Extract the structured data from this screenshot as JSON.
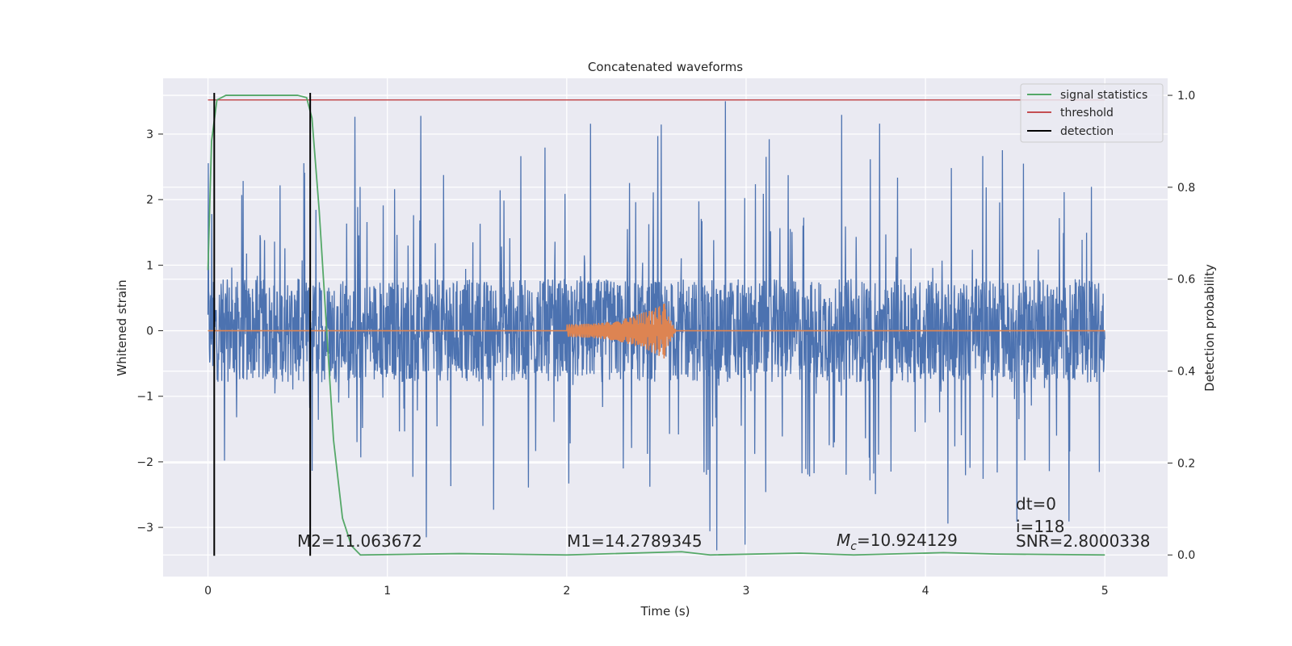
{
  "chart_data": {
    "type": "line",
    "title": "Concatenated waveforms",
    "xlabel": "Time (s)",
    "ylabel": "Whitened strain",
    "y2label": "Detection probability",
    "xlim": [
      -0.25,
      5.35
    ],
    "ylim": [
      -3.75,
      3.85
    ],
    "y2lim": [
      -0.047,
      1.037
    ],
    "x_ticks": [
      0,
      1,
      2,
      3,
      4,
      5
    ],
    "x_tick_labels": [
      "0",
      "1",
      "2",
      "3",
      "4",
      "5"
    ],
    "y_ticks": [
      -3,
      -2,
      -1,
      0,
      1,
      2,
      3
    ],
    "y_tick_labels": [
      "−3",
      "−2",
      "−1",
      "0",
      "1",
      "2",
      "3"
    ],
    "y2_ticks": [
      0.0,
      0.2,
      0.4,
      0.6,
      0.8,
      1.0
    ],
    "y2_tick_labels": [
      "0.0",
      "0.2",
      "0.4",
      "0.6",
      "0.8",
      "1.0"
    ],
    "grid": true,
    "legend_position": "top-right",
    "series": [
      {
        "name": "whitened strain",
        "axis": "left",
        "color": "#4c72b0",
        "description": "noise-dominated strain, amplitude roughly between -3.3 and 3.5 over 0 to 5 s",
        "x_range": [
          0,
          5
        ],
        "band": [
          -0.75,
          0.75
        ],
        "spike_max": 3.5,
        "spike_min": -3.35
      },
      {
        "name": "injected waveform",
        "axis": "left",
        "color": "#dd8452",
        "chirp_start": 2.0,
        "chirp_end": 2.56,
        "chirp_peak_amplitude": 0.45,
        "x_range": [
          0,
          5
        ]
      },
      {
        "name": "signal statistics",
        "axis": "right",
        "color": "#55a868",
        "points": [
          [
            0.0,
            0.62
          ],
          [
            0.02,
            0.9
          ],
          [
            0.05,
            0.99
          ],
          [
            0.1,
            1.0
          ],
          [
            0.5,
            1.0
          ],
          [
            0.55,
            0.995
          ],
          [
            0.58,
            0.95
          ],
          [
            0.62,
            0.75
          ],
          [
            0.66,
            0.5
          ],
          [
            0.7,
            0.25
          ],
          [
            0.75,
            0.08
          ],
          [
            0.8,
            0.02
          ],
          [
            0.85,
            0.0
          ],
          [
            1.4,
            0.003
          ],
          [
            2.0,
            0.0
          ],
          [
            2.64,
            0.007
          ],
          [
            2.8,
            0.0
          ],
          [
            3.3,
            0.004
          ],
          [
            3.6,
            0.0
          ],
          [
            4.1,
            0.005
          ],
          [
            4.4,
            0.002
          ],
          [
            5.0,
            0.0
          ]
        ]
      },
      {
        "name": "threshold",
        "axis": "right",
        "color": "#c44e52",
        "value": 0.99,
        "x_range": [
          0,
          5
        ]
      },
      {
        "name": "detection",
        "axis": "right",
        "color": "#000000",
        "x_positions": [
          0.035,
          0.57
        ]
      }
    ],
    "legend": [
      "signal statistics",
      "threshold",
      "detection"
    ],
    "annotations": {
      "m2": "M2=11.063672",
      "m1": "M1=14.2789345",
      "mc_symbol": "M",
      "mc_sub": "c",
      "mc_value": "=10.924129",
      "dt": "dt=0",
      "i": "i=118",
      "snr": "SNR=2.8000338"
    },
    "colors": {
      "background": "#eaeaf2",
      "grid": "#ffffff"
    }
  }
}
